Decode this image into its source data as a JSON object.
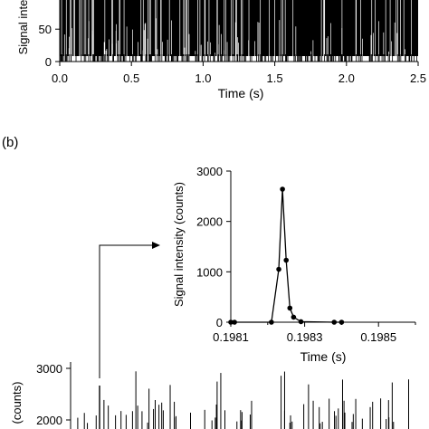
{
  "panel_b_label": "(b)",
  "chart_data": [
    {
      "type": "line",
      "panel": "a",
      "description_visible": "dense spike train (partially cropped at top)",
      "xlabel": "Time (s)",
      "ylabel": "Signal inte",
      "xlim": [
        0.0,
        2.5
      ],
      "xticks": [
        "0.0",
        "0.5",
        "1.0",
        "1.5",
        "2.0",
        "2.5"
      ],
      "yticks": [
        {
          "value": 0,
          "label": "0"
        },
        {
          "value": 50,
          "label": "50"
        }
      ],
      "ylim_visible": [
        0,
        95
      ]
    },
    {
      "type": "line",
      "panel": "b-inset",
      "xlabel": "Time (s)",
      "ylabel": "Signal intensity (counts)",
      "xlim": [
        0.1981,
        0.1986
      ],
      "ylim": [
        0,
        3000
      ],
      "xticks": [
        "0.1981",
        "0.1983",
        "0.1985"
      ],
      "xtick_values": [
        0.1981,
        0.1983,
        0.1985
      ],
      "yticks": [
        "0",
        "1000",
        "2000",
        "3000"
      ],
      "ytick_values": [
        0,
        1000,
        2000,
        3000
      ],
      "series": [
        {
          "x": [
            0.1981,
            0.19811,
            0.19821,
            0.19823,
            0.19824,
            0.19825,
            0.19826,
            0.19827,
            0.19829,
            0.19838,
            0.1984
          ],
          "y": [
            0,
            0,
            0,
            1050,
            2640,
            1230,
            280,
            100,
            10,
            0,
            0
          ]
        }
      ]
    },
    {
      "type": "line",
      "panel": "b-main",
      "ylabel": "(counts)",
      "ylim_visible": [
        1800,
        3000
      ],
      "yticks": [
        "3000",
        "2000"
      ],
      "ytick_values": [
        3000,
        2000
      ]
    }
  ]
}
